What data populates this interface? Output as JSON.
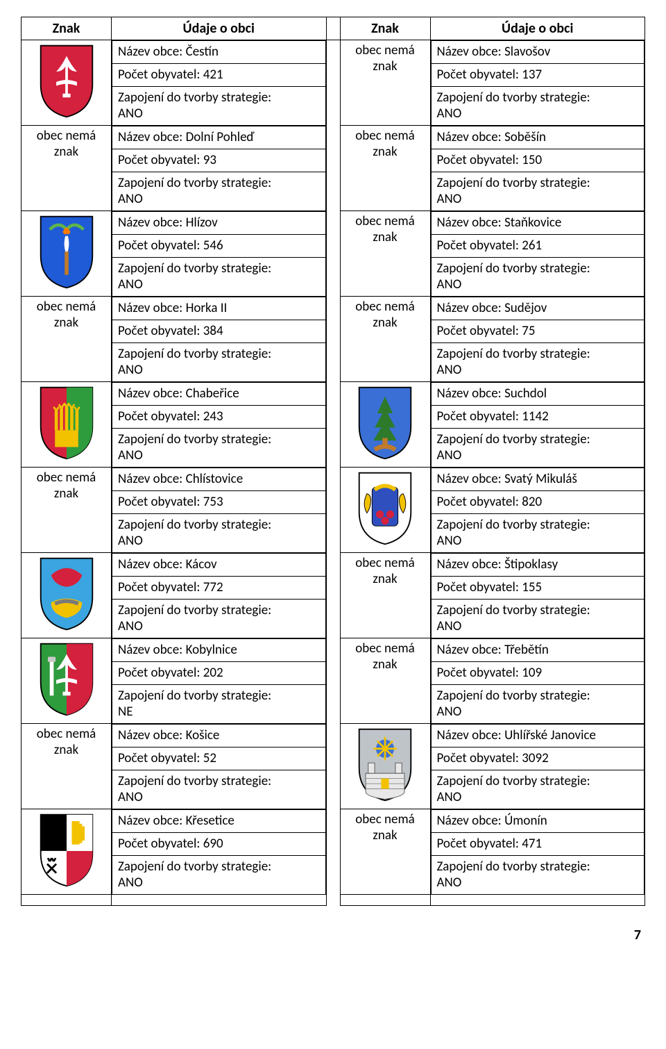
{
  "headers": {
    "znak": "Znak",
    "udaje": "Údaje o obci"
  },
  "labels": {
    "nazev": "Název obce:",
    "pocet": "Počet obyvatel:",
    "zapojeni": "Zapojení do tvorby strategie:",
    "noZnak1": "obec nemá",
    "noZnak2": "znak"
  },
  "pageNumber": "7",
  "left": [
    {
      "coat": "cestin",
      "name": "Čestín",
      "pop": "421",
      "zap": "ANO"
    },
    {
      "coat": "",
      "name": "Dolní Pohleď",
      "pop": "93",
      "zap": "ANO"
    },
    {
      "coat": "hlizov",
      "name": "Hlízov",
      "pop": "546",
      "zap": "ANO"
    },
    {
      "coat": "",
      "name": "Horka II",
      "pop": "384",
      "zap": "ANO"
    },
    {
      "coat": "chaberice",
      "name": "Chabeřice",
      "pop": "243",
      "zap": "ANO"
    },
    {
      "coat": "",
      "name": "Chlístovice",
      "pop": "753",
      "zap": "ANO"
    },
    {
      "coat": "kacov",
      "name": "Kácov",
      "pop": "772",
      "zap": "ANO"
    },
    {
      "coat": "kobylnice",
      "name": "Kobylnice",
      "pop": "202",
      "zap": "NE"
    },
    {
      "coat": "",
      "name": "Košice",
      "pop": "52",
      "zap": "ANO"
    },
    {
      "coat": "kresetice",
      "name": "Křesetice",
      "pop": "690",
      "zap": "ANO"
    }
  ],
  "right": [
    {
      "coat": "",
      "name": "Slavošov",
      "pop": "137",
      "zap": "ANO"
    },
    {
      "coat": "",
      "name": "Soběšín",
      "pop": "150",
      "zap": "ANO"
    },
    {
      "coat": "",
      "name": "Staňkovice",
      "pop": "261",
      "zap": "ANO"
    },
    {
      "coat": "",
      "name": "Sudějov",
      "pop": "75",
      "zap": "ANO"
    },
    {
      "coat": "suchdol",
      "name": "Suchdol",
      "pop": "1142",
      "zap": "ANO"
    },
    {
      "coat": "svmikulas",
      "name": "Svatý Mikuláš",
      "pop": "820",
      "zap": "ANO"
    },
    {
      "coat": "",
      "name": "Štipoklasy",
      "pop": "155",
      "zap": "ANO"
    },
    {
      "coat": "",
      "name": "Třebětín",
      "pop": "109",
      "zap": "ANO"
    },
    {
      "coat": "uhlirske",
      "name": "Uhlířské Janovice",
      "pop": "3092",
      "zap": "ANO"
    },
    {
      "coat": "",
      "name": "Úmonín",
      "pop": "471",
      "zap": "ANO"
    }
  ],
  "coats": {
    "cestin": {
      "bg": "#d4213d",
      "shape": "fleur",
      "accent": "#ffffff"
    },
    "hlizov": {
      "bg": "#1f5bd6",
      "shape": "torch",
      "accent": "#5fb54a"
    },
    "chaberice": {
      "bg": "#d4213d",
      "shape": "wheat",
      "accent": "#f2c200",
      "half": "#2e9b3d"
    },
    "kacov": {
      "bg": "#3aa5e0",
      "shape": "shell",
      "accent": "#d4213d",
      "bowl": "#f2c200"
    },
    "kobylnice": {
      "bg": "#2e9b3d",
      "shape": "fleur",
      "accent": "#ffffff",
      "half": "#d4213d"
    },
    "kresetice": {
      "bg": "#ffffff",
      "shape": "quartered",
      "accent": "#f2c200",
      "q1": "#000000",
      "q2": "#d4213d"
    },
    "suchdol": {
      "bg": "#3a6fd6",
      "shape": "tree",
      "accent": "#c07a2b"
    },
    "svmikulas": {
      "bg": "#ffffff",
      "shape": "lions",
      "accent": "#f2c200",
      "inner": "#d4213d",
      "blue": "#2f4fbf"
    },
    "uhlirske": {
      "bg": "#bfc4c9",
      "shape": "wall",
      "accent": "#3a6fd6",
      "gold": "#f2c200"
    }
  }
}
